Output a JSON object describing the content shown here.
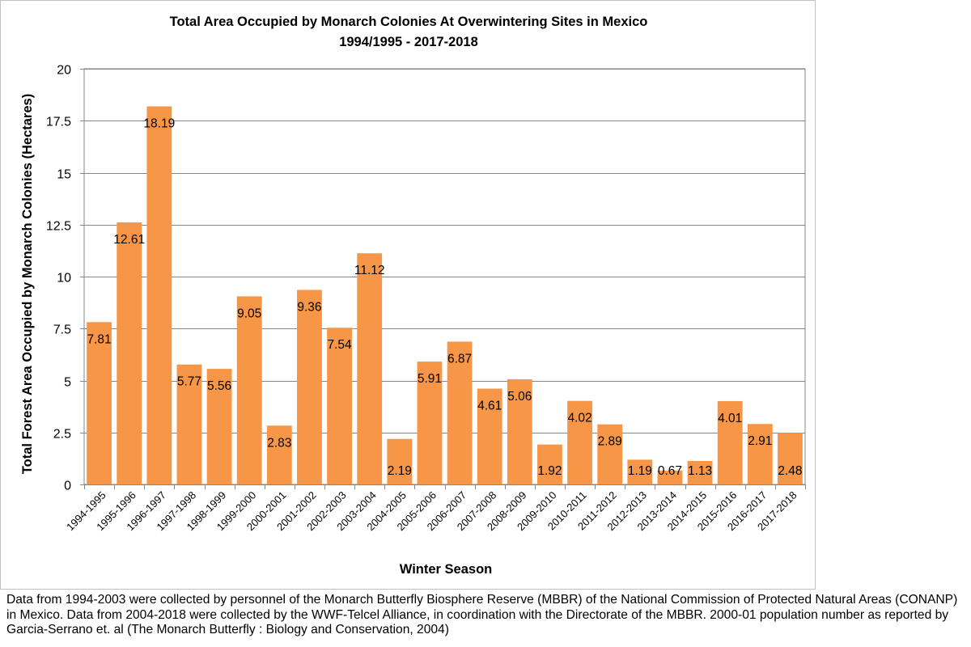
{
  "chart_data": {
    "type": "bar",
    "title": "Total Area Occupied by Monarch  Colonies At Overwintering Sites in Mexico",
    "subtitle": "1994/1995 - 2017-2018",
    "xlabel": "Winter Season",
    "ylabel": "Total Forest Area Occupied by Monarch Colonies (Hectares)",
    "ylim": [
      0,
      20
    ],
    "yticks": [
      "0",
      "2.5",
      "5",
      "7.5",
      "10",
      "12.5",
      "15",
      "17.5",
      "20"
    ],
    "grid": true,
    "bar_color": "#f79646",
    "categories": [
      "1994-1995",
      "1995-1996",
      "1996-1997",
      "1997-1998",
      "1998-1999",
      "1999-2000",
      "2000-2001",
      "2001-2002",
      "2002-2003",
      "2003-2004",
      "2004-2005",
      "2005-2006",
      "2006-2007",
      "2007-2008",
      "2008-2009",
      "2009-2010",
      "2010-2011",
      "2011-2012",
      "2012-2013",
      "2013-2014",
      "2014-2015",
      "2015-2016",
      "2016-2017",
      "2017-2018"
    ],
    "values": [
      7.81,
      12.61,
      18.19,
      5.77,
      5.56,
      9.05,
      2.83,
      9.36,
      7.54,
      11.12,
      2.19,
      5.91,
      6.87,
      4.61,
      5.06,
      1.92,
      4.02,
      2.89,
      1.19,
      0.67,
      1.13,
      4.01,
      2.91,
      2.48
    ],
    "data_labels": [
      "7.81",
      "12.61",
      "18.19",
      "5.77",
      "5.56",
      "9.05",
      "2.83",
      "9.36",
      "7.54",
      "11.12",
      "2.19",
      "5.91",
      "6.87",
      "4.61",
      "5.06",
      "1.92",
      "4.02",
      "2.89",
      "1.19",
      "0.67",
      "1.13",
      "4.01",
      "2.91",
      "2.48"
    ]
  },
  "footnote": "Data from 1994-2003 were collected by personnel of the Monarch Butterfly Biosphere Reserve (MBBR) of the National Commission of Protected Natural Areas (CONANP) in Mexico. Data from 2004-2018 were collected by the WWF-Telcel Alliance, in coordination with the Directorate of the MBBR. 2000-01 population number as reported by Garcia-Serrano et. al (The Monarch Butterfly : Biology and Conservation, 2004)"
}
